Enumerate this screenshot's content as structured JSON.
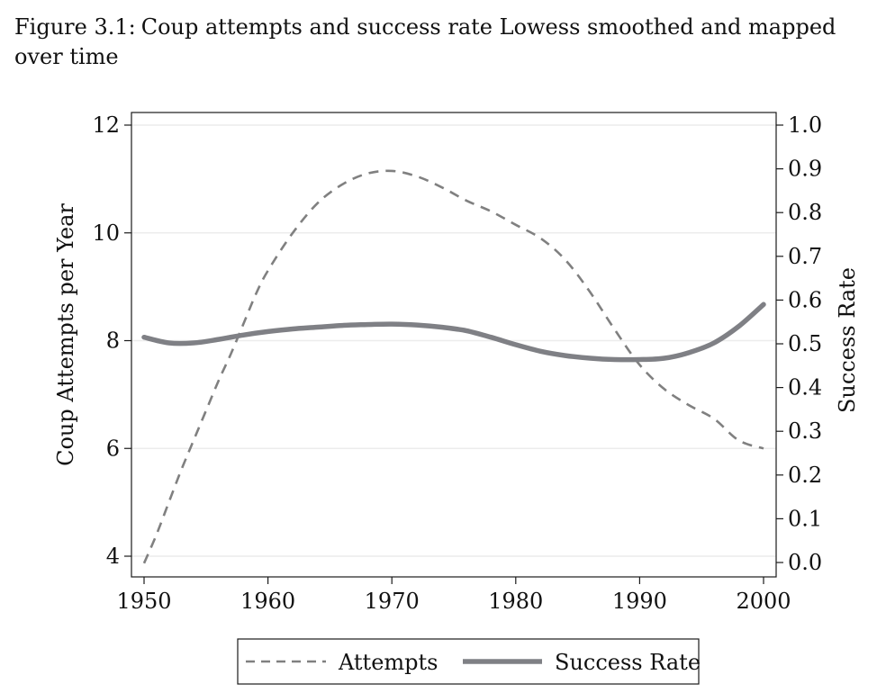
{
  "caption": {
    "label": "Figure 3.1:",
    "text": "Coup attempts and success rate Lowess smoothed and mapped over time"
  },
  "chart_data": {
    "type": "line",
    "title": "",
    "xlabel": "",
    "ylabel": "Coup Attempts per Year",
    "y2label": "Success Rate",
    "xlim": [
      1950,
      2000
    ],
    "ylim": [
      3.7,
      12.2
    ],
    "y2lim": [
      -0.03,
      1.03
    ],
    "xticks": [
      1950,
      1960,
      1970,
      1980,
      1990,
      2000
    ],
    "yticks": [
      4,
      6,
      8,
      10,
      12
    ],
    "y2ticks": [
      "0.0",
      "0.1",
      "0.2",
      "0.3",
      "0.4",
      "0.5",
      "0.6",
      "0.7",
      "0.8",
      "0.9",
      "1.0"
    ],
    "grid": true,
    "legend_position": "bottom",
    "series": [
      {
        "name": "Attempts",
        "axis": "left",
        "style": "dashed",
        "color": "#808080",
        "x": [
          1950,
          1951,
          1952,
          1953,
          1954,
          1955,
          1956,
          1957,
          1958,
          1959,
          1960,
          1962,
          1964,
          1966,
          1968,
          1970,
          1972,
          1974,
          1976,
          1978,
          1980,
          1982,
          1984,
          1986,
          1988,
          1990,
          1992,
          1994,
          1996,
          1998,
          2000
        ],
        "values": [
          3.87,
          4.4,
          5.0,
          5.6,
          6.15,
          6.7,
          7.25,
          7.75,
          8.3,
          8.85,
          9.3,
          10.0,
          10.55,
          10.9,
          11.1,
          11.15,
          11.05,
          10.85,
          10.6,
          10.4,
          10.15,
          9.9,
          9.5,
          8.9,
          8.2,
          7.55,
          7.1,
          6.8,
          6.55,
          6.15,
          6.0
        ]
      },
      {
        "name": "Success Rate",
        "axis": "right",
        "style": "solid",
        "color": "#7f8085",
        "x": [
          1950,
          1952,
          1954,
          1956,
          1958,
          1960,
          1962,
          1964,
          1966,
          1968,
          1970,
          1972,
          1974,
          1976,
          1978,
          1980,
          1982,
          1984,
          1986,
          1988,
          1990,
          1992,
          1994,
          1996,
          1998,
          2000
        ],
        "values": [
          0.515,
          0.502,
          0.502,
          0.51,
          0.52,
          0.528,
          0.534,
          0.538,
          0.542,
          0.544,
          0.545,
          0.543,
          0.538,
          0.53,
          0.515,
          0.498,
          0.483,
          0.473,
          0.467,
          0.464,
          0.464,
          0.467,
          0.48,
          0.502,
          0.54,
          0.59
        ]
      }
    ]
  }
}
